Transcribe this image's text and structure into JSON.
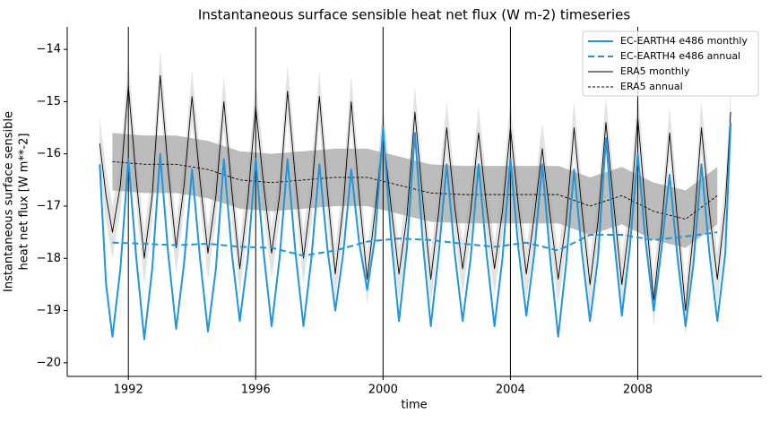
{
  "chart_data": {
    "type": "line",
    "title": "Instantaneous surface sensible heat net flux (W m-2) timeseries",
    "xlabel": "time",
    "ylabel": [
      "Instantaneous surface sensible",
      "heat net flux [W m**-2]"
    ],
    "xlim": [
      1990.08,
      2011.9
    ],
    "ylim": [
      -20.26,
      -13.57
    ],
    "xticks": [
      1992,
      1996,
      2000,
      2004,
      2008
    ],
    "yticks": [
      {
        "value": -14,
        "label": "−14"
      },
      {
        "value": -15,
        "label": "−15"
      },
      {
        "value": -16,
        "label": "−16"
      },
      {
        "value": -17,
        "label": "−17"
      },
      {
        "value": -18,
        "label": "−18"
      },
      {
        "value": -19,
        "label": "−19"
      },
      {
        "value": -20,
        "label": "−20"
      }
    ],
    "grid": "x",
    "legend": "upper right",
    "series": [
      {
        "name": "EC-EARTH4 e486 monthly",
        "color": "#1f96dc",
        "dash": "solid",
        "width": 2,
        "x": [
          1991.1,
          1991.3,
          1991.5,
          1991.75,
          1992,
          1992.25,
          1992.5,
          1992.75,
          1993,
          1993.25,
          1993.5,
          1993.75,
          1994,
          1994.25,
          1994.5,
          1994.75,
          1995,
          1995.25,
          1995.5,
          1995.75,
          1996,
          1996.25,
          1996.5,
          1996.75,
          1997,
          1997.25,
          1997.5,
          1997.75,
          1998,
          1998.25,
          1998.5,
          1998.75,
          1999,
          1999.25,
          1999.5,
          1999.75,
          2000,
          2000.25,
          2000.5,
          2000.75,
          2001,
          2001.25,
          2001.5,
          2001.75,
          2002,
          2002.25,
          2002.5,
          2002.75,
          2003,
          2003.25,
          2003.5,
          2003.75,
          2004,
          2004.25,
          2004.5,
          2004.75,
          2005,
          2005.25,
          2005.5,
          2005.75,
          2006,
          2006.25,
          2006.5,
          2006.75,
          2007,
          2007.25,
          2007.5,
          2007.75,
          2008,
          2008.25,
          2008.5,
          2008.75,
          2009,
          2009.25,
          2009.5,
          2009.75,
          2010,
          2010.25,
          2010.5,
          2010.75,
          2010.92
        ],
        "values": [
          -16.2,
          -18.5,
          -19.5,
          -18.2,
          -16.1,
          -18.0,
          -19.55,
          -18.2,
          -16.0,
          -17.9,
          -19.35,
          -18.1,
          -16.3,
          -18.0,
          -19.4,
          -18.2,
          -16.1,
          -17.9,
          -19.2,
          -18.0,
          -16.1,
          -17.9,
          -19.3,
          -18.0,
          -16.1,
          -17.9,
          -19.3,
          -18.0,
          -16.2,
          -17.8,
          -19.0,
          -17.9,
          -16.3,
          -17.7,
          -18.6,
          -17.6,
          -15.5,
          -17.6,
          -19.2,
          -17.8,
          -15.6,
          -17.7,
          -19.3,
          -17.9,
          -16.2,
          -17.9,
          -19.2,
          -18.0,
          -16.2,
          -17.9,
          -19.3,
          -18.0,
          -16.1,
          -17.8,
          -19.1,
          -17.9,
          -16.2,
          -18.0,
          -19.5,
          -18.1,
          -16.3,
          -17.9,
          -19.2,
          -18.0,
          -15.7,
          -17.6,
          -19.1,
          -17.8,
          -16.0,
          -17.7,
          -19.0,
          -17.8,
          -16.4,
          -18.0,
          -19.3,
          -18.1,
          -16.2,
          -17.9,
          -19.2,
          -17.9,
          -15.4
        ]
      },
      {
        "name": "EC-EARTH4 e486 annual",
        "color": "#1f96dc",
        "dash": "dashed",
        "width": 2,
        "x": [
          1991.5,
          1992.5,
          1993.5,
          1994.5,
          1995.5,
          1996.5,
          1997.5,
          1998.5,
          1999.5,
          2000.5,
          2001.5,
          2002.5,
          2003.5,
          2004.5,
          2005.5,
          2006.5,
          2007.5,
          2008.5,
          2009.5,
          2010.5
        ],
        "values": [
          -17.7,
          -17.72,
          -17.75,
          -17.72,
          -17.78,
          -17.8,
          -17.95,
          -17.85,
          -17.68,
          -17.62,
          -17.65,
          -17.72,
          -17.78,
          -17.7,
          -17.85,
          -17.55,
          -17.55,
          -17.65,
          -17.58,
          -17.5
        ]
      },
      {
        "name": "ERA5 monthly",
        "color": "#000000",
        "dash": "solid",
        "width": 0.9,
        "spread": 0.5,
        "spread_color": "#d9d9d9",
        "x": [
          1991.1,
          1991.3,
          1991.5,
          1991.75,
          1992,
          1992.25,
          1992.5,
          1992.75,
          1993,
          1993.25,
          1993.5,
          1993.75,
          1994,
          1994.25,
          1994.5,
          1994.75,
          1995,
          1995.25,
          1995.5,
          1995.75,
          1996,
          1996.25,
          1996.5,
          1996.75,
          1997,
          1997.25,
          1997.5,
          1997.75,
          1998,
          1998.25,
          1998.5,
          1998.75,
          1999,
          1999.25,
          1999.5,
          1999.75,
          2000,
          2000.25,
          2000.5,
          2000.75,
          2001,
          2001.25,
          2001.5,
          2001.75,
          2002,
          2002.25,
          2002.5,
          2002.75,
          2003,
          2003.25,
          2003.5,
          2003.75,
          2004,
          2004.25,
          2004.5,
          2004.75,
          2005,
          2005.25,
          2005.5,
          2005.75,
          2006,
          2006.25,
          2006.5,
          2006.75,
          2007,
          2007.25,
          2007.5,
          2007.75,
          2008,
          2008.25,
          2008.5,
          2008.75,
          2009,
          2009.25,
          2009.5,
          2009.75,
          2010,
          2010.25,
          2010.5,
          2010.75,
          2010.92
        ],
        "values": [
          -15.8,
          -16.8,
          -17.5,
          -16.6,
          -14.7,
          -16.5,
          -18.0,
          -16.8,
          -14.5,
          -16.3,
          -17.8,
          -16.6,
          -14.9,
          -16.5,
          -17.9,
          -16.8,
          -15.0,
          -16.7,
          -18.2,
          -16.9,
          -15.1,
          -16.6,
          -17.9,
          -16.8,
          -14.8,
          -16.5,
          -18.0,
          -16.8,
          -14.9,
          -16.7,
          -18.3,
          -17.0,
          -15.0,
          -16.8,
          -18.4,
          -17.1,
          -15.6,
          -17.0,
          -18.3,
          -17.2,
          -15.2,
          -16.9,
          -18.4,
          -17.1,
          -15.5,
          -17.0,
          -18.2,
          -17.1,
          -15.6,
          -17.0,
          -18.2,
          -17.1,
          -15.5,
          -17.0,
          -18.3,
          -17.2,
          -15.9,
          -17.2,
          -18.4,
          -17.3,
          -15.5,
          -17.1,
          -18.5,
          -17.3,
          -15.4,
          -17.0,
          -18.5,
          -17.3,
          -15.3,
          -17.1,
          -18.8,
          -17.4,
          -15.6,
          -17.3,
          -19.0,
          -17.5,
          -15.5,
          -17.1,
          -18.4,
          -17.0,
          -15.2
        ]
      },
      {
        "name": "ERA5 annual",
        "color": "#000000",
        "dash": "dotted",
        "width": 0.9,
        "spread": 0.55,
        "spread_color": "#a6a6a6",
        "x": [
          1991.5,
          1992.5,
          1993.5,
          1994.5,
          1995.5,
          1996.5,
          1997.5,
          1998.5,
          1999.5,
          2000.5,
          2001.5,
          2002.5,
          2003.5,
          2004.5,
          2005.5,
          2006.5,
          2007.5,
          2008.5,
          2009.5,
          2010.5
        ],
        "values": [
          -16.15,
          -16.2,
          -16.2,
          -16.3,
          -16.5,
          -16.55,
          -16.5,
          -16.45,
          -16.45,
          -16.6,
          -16.75,
          -16.78,
          -16.78,
          -16.78,
          -16.78,
          -17.0,
          -16.8,
          -17.1,
          -17.25,
          -16.8
        ]
      }
    ]
  }
}
